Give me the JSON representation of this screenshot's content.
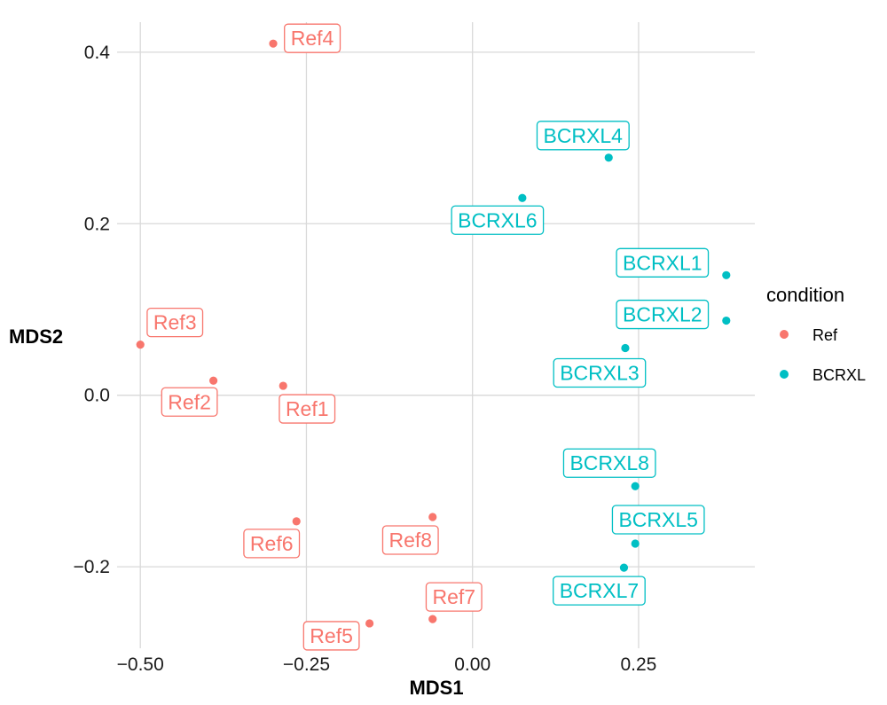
{
  "chart_data": {
    "type": "scatter",
    "xlabel": "MDS1",
    "ylabel": "MDS2",
    "xlim": [
      -0.535,
      0.425
    ],
    "ylim": [
      -0.295,
      0.435
    ],
    "x_ticks": [
      -0.5,
      -0.25,
      0.0,
      0.25
    ],
    "x_tick_labels": [
      "−0.50",
      "−0.25",
      "0.00",
      "0.25"
    ],
    "y_ticks": [
      -0.2,
      0.0,
      0.2,
      0.4
    ],
    "y_tick_labels": [
      "−0.2",
      "0.0",
      "0.2",
      "0.4"
    ],
    "grid": true,
    "legend": {
      "title": "condition",
      "position": "right",
      "entries": [
        {
          "label": "Ref",
          "color": "#F8766D"
        },
        {
          "label": "BCRXL",
          "color": "#00BFC4"
        }
      ]
    },
    "series": [
      {
        "name": "Ref",
        "color": "#F8766D",
        "points": [
          {
            "label": "Ref1",
            "x": -0.285,
            "y": 0.011
          },
          {
            "label": "Ref2",
            "x": -0.39,
            "y": 0.017
          },
          {
            "label": "Ref3",
            "x": -0.5,
            "y": 0.059
          },
          {
            "label": "Ref4",
            "x": -0.3,
            "y": 0.41
          },
          {
            "label": "Ref5",
            "x": -0.155,
            "y": -0.266
          },
          {
            "label": "Ref6",
            "x": -0.265,
            "y": -0.147
          },
          {
            "label": "Ref7",
            "x": -0.06,
            "y": -0.261
          },
          {
            "label": "Ref8",
            "x": -0.06,
            "y": -0.142
          }
        ]
      },
      {
        "name": "BCRXL",
        "color": "#00BFC4",
        "points": [
          {
            "label": "BCRXL1",
            "x": 0.382,
            "y": 0.14
          },
          {
            "label": "BCRXL2",
            "x": 0.382,
            "y": 0.087
          },
          {
            "label": "BCRXL3",
            "x": 0.23,
            "y": 0.055
          },
          {
            "label": "BCRXL4",
            "x": 0.205,
            "y": 0.277
          },
          {
            "label": "BCRXL5",
            "x": 0.245,
            "y": -0.173
          },
          {
            "label": "BCRXL6",
            "x": 0.075,
            "y": 0.23
          },
          {
            "label": "BCRXL7",
            "x": 0.228,
            "y": -0.201
          },
          {
            "label": "BCRXL8",
            "x": 0.245,
            "y": -0.106
          }
        ]
      }
    ]
  }
}
